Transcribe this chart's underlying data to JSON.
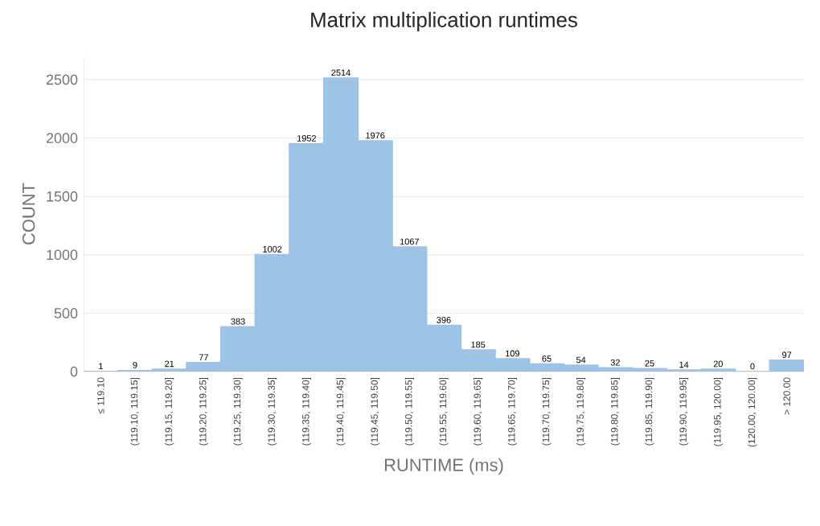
{
  "chart_data": {
    "type": "bar",
    "title": "Matrix multiplication runtimes",
    "xlabel": "RUNTIME (ms)",
    "ylabel": "COUNT",
    "categories": [
      "≤ 119.10",
      "(119.10, 119.15]",
      "(119.15, 119.20]",
      "(119.20, 119.25]",
      "(119.25, 119.30]",
      "(119.30, 119.35]",
      "(119.35, 119.40]",
      "(119.40, 119.45]",
      "(119.45, 119.50]",
      "(119.50, 119.55]",
      "(119.55, 119.60]",
      "(119.60, 119.65]",
      "(119.65, 119.70]",
      "(119.70, 119.75]",
      "(119.75, 119.80]",
      "(119.80, 119.85]",
      "(119.85, 119.90]",
      "(119.90, 119.95]",
      "(119.95, 120.00]",
      "(120.00, 120.00]",
      "> 120.00"
    ],
    "values": [
      1,
      9,
      21,
      77,
      383,
      1002,
      1952,
      2514,
      1976,
      1067,
      396,
      185,
      109,
      65,
      54,
      32,
      25,
      14,
      20,
      0,
      97
    ],
    "color": "#9dc3e6",
    "ylim": [
      0,
      2700
    ],
    "yticks": [
      0,
      500,
      1000,
      1500,
      2000,
      2500
    ],
    "grid": "y",
    "data_labels": true
  }
}
